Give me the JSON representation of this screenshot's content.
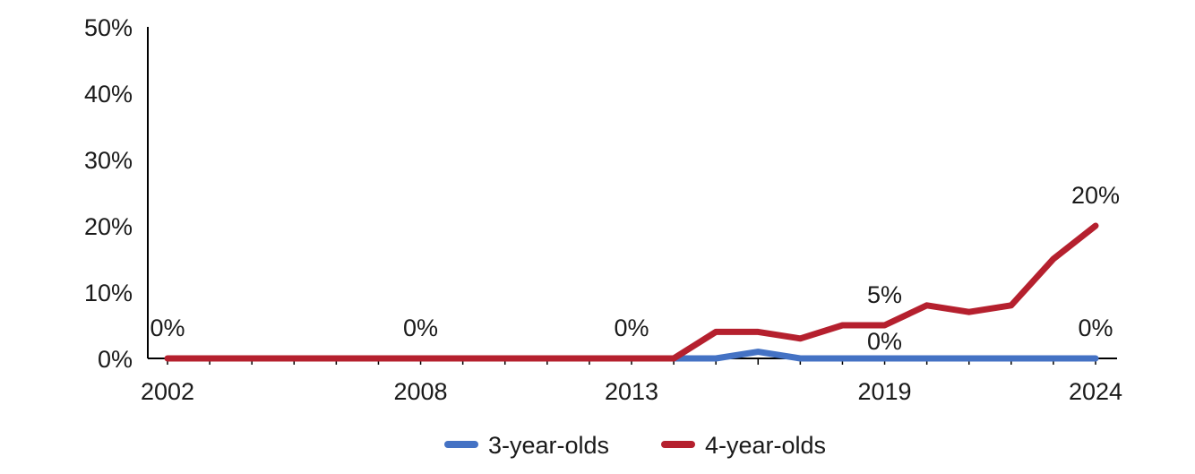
{
  "chart_data": {
    "type": "line",
    "x": [
      2002,
      2003,
      2004,
      2005,
      2006,
      2007,
      2008,
      2009,
      2010,
      2011,
      2012,
      2013,
      2014,
      2015,
      2016,
      2017,
      2018,
      2019,
      2020,
      2021,
      2022,
      2023,
      2024
    ],
    "x_tick_labels": [
      "2002",
      "2008",
      "2013",
      "2019",
      "2024"
    ],
    "y_tick_labels": [
      "0%",
      "10%",
      "20%",
      "30%",
      "40%",
      "50%"
    ],
    "ylim": [
      0,
      50
    ],
    "y_unit": "%",
    "grid": false,
    "legend_position": "bottom",
    "series": [
      {
        "name": "3-year-olds",
        "color": "#4472C4",
        "values": [
          null,
          null,
          null,
          null,
          null,
          null,
          null,
          null,
          null,
          null,
          null,
          null,
          0,
          0,
          1,
          0,
          0,
          0,
          0,
          0,
          0,
          0,
          0
        ]
      },
      {
        "name": "4-year-olds",
        "color": "#B5202E",
        "values": [
          0,
          0,
          0,
          0,
          0,
          0,
          0,
          0,
          0,
          0,
          0,
          0,
          0,
          4,
          4,
          3,
          5,
          5,
          8,
          7,
          8,
          15,
          20
        ]
      }
    ],
    "data_labels": [
      {
        "series": 1,
        "x": 2002,
        "text": "0%"
      },
      {
        "series": 1,
        "x": 2008,
        "text": "0%"
      },
      {
        "series": 1,
        "x": 2013,
        "text": "0%"
      },
      {
        "series": 1,
        "x": 2019,
        "text": "5%"
      },
      {
        "series": 0,
        "x": 2019,
        "text": "0%"
      },
      {
        "series": 1,
        "x": 2024,
        "text": "20%"
      },
      {
        "series": 0,
        "x": 2024,
        "text": "0%"
      }
    ]
  }
}
